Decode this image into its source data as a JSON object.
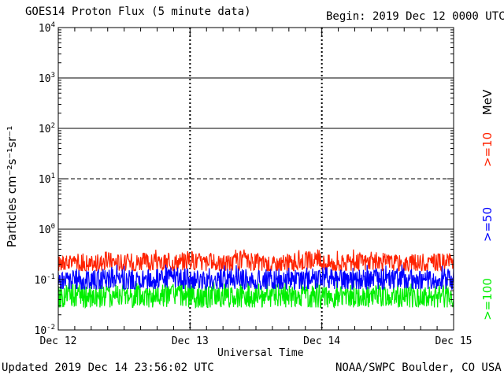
{
  "header": {
    "title": "GOES14 Proton Flux (5 minute data)",
    "begin": "Begin: 2019 Dec 12 0000 UTC"
  },
  "footer": {
    "updated": "Updated 2019 Dec 14 23:56:02 UTC",
    "credit": "NOAA/SWPC Boulder, CO USA"
  },
  "chart_data": {
    "type": "line",
    "title": "GOES14 Proton Flux (5 minute data)",
    "xlabel": "Universal Time",
    "ylabel": "Particles cm⁻²s⁻¹sr⁻¹",
    "yscale": "log",
    "ylim": [
      0.01,
      10000
    ],
    "y_ticks": [
      {
        "value": 0.01,
        "base": "10",
        "exp": "-2"
      },
      {
        "value": 0.1,
        "base": "10",
        "exp": "-1"
      },
      {
        "value": 1,
        "base": "10",
        "exp": "0"
      },
      {
        "value": 10,
        "base": "10",
        "exp": "1"
      },
      {
        "value": 100,
        "base": "10",
        "exp": "2"
      },
      {
        "value": 1000,
        "base": "10",
        "exp": "3"
      },
      {
        "value": 10000,
        "base": "10",
        "exp": "4"
      }
    ],
    "x_ticks": [
      "Dec 12",
      "Dec 13",
      "Dec 14",
      "Dec 15"
    ],
    "xlim_days": [
      0,
      3
    ],
    "grid": "solid horizontal lines at 1, 100 and 1000; dashed at 10; dashed vertical day separators",
    "legend_placement": "right",
    "unit_label": "MeV",
    "colors": {
      "gt10": "#ff2200",
      "gt50": "#0000ff",
      "gt100": "#00ee00"
    },
    "series": [
      {
        "name": ">=10",
        "color": "#ff2200",
        "x_hours": [
          0,
          3,
          6,
          9,
          12,
          15,
          18,
          21,
          24,
          27,
          30,
          33,
          36,
          39,
          42,
          45,
          48,
          51,
          54,
          57,
          60,
          63,
          66,
          69,
          72
        ],
        "values": [
          0.2,
          0.22,
          0.19,
          0.24,
          0.21,
          0.23,
          0.2,
          0.22,
          0.25,
          0.21,
          0.2,
          0.23,
          0.22,
          0.19,
          0.21,
          0.24,
          0.22,
          0.2,
          0.21,
          0.23,
          0.22,
          0.2,
          0.21,
          0.22,
          0.21
        ],
        "band": [
          0.15,
          0.4
        ]
      },
      {
        "name": ">=50",
        "color": "#0000ff",
        "x_hours": [
          0,
          3,
          6,
          9,
          12,
          15,
          18,
          21,
          24,
          27,
          30,
          33,
          36,
          39,
          42,
          45,
          48,
          51,
          54,
          57,
          60,
          63,
          66,
          69,
          72
        ],
        "values": [
          0.09,
          0.1,
          0.09,
          0.11,
          0.1,
          0.09,
          0.1,
          0.11,
          0.1,
          0.09,
          0.1,
          0.11,
          0.09,
          0.1,
          0.1,
          0.09,
          0.11,
          0.1,
          0.09,
          0.1,
          0.1,
          0.11,
          0.09,
          0.1,
          0.1
        ],
        "band": [
          0.065,
          0.2
        ]
      },
      {
        "name": ">=100",
        "color": "#00ee00",
        "x_hours": [
          0,
          3,
          6,
          9,
          12,
          15,
          18,
          21,
          24,
          27,
          30,
          33,
          36,
          39,
          42,
          45,
          48,
          51,
          54,
          57,
          60,
          63,
          66,
          69,
          72
        ],
        "values": [
          0.045,
          0.05,
          0.042,
          0.048,
          0.05,
          0.044,
          0.046,
          0.05,
          0.047,
          0.043,
          0.049,
          0.046,
          0.045,
          0.05,
          0.044,
          0.047,
          0.046,
          0.048,
          0.043,
          0.047,
          0.045,
          0.049,
          0.046,
          0.044,
          0.046
        ],
        "band": [
          0.028,
          0.1
        ]
      }
    ]
  }
}
